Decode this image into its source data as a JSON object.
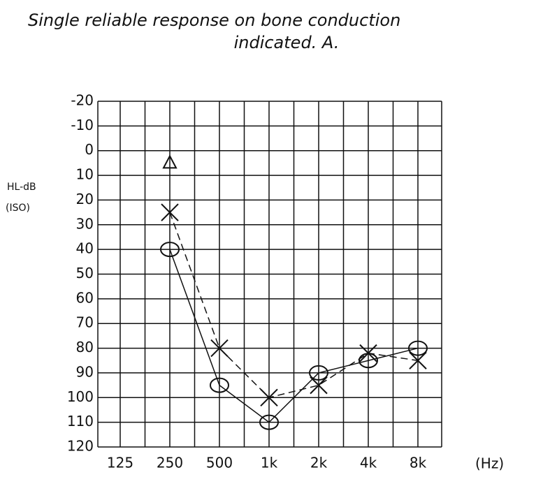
{
  "chart_data": {
    "type": "line",
    "title": [
      "Single reliable response on bone conduction",
      "indicated. A."
    ],
    "y_label": [
      "HL-dB",
      "(ISO)"
    ],
    "x_unit": "(Hz)",
    "categories": [
      "125",
      "250",
      "500",
      "1k",
      "2k",
      "4k",
      "8k"
    ],
    "series": [
      {
        "marker": "circle",
        "dash": false,
        "color": "#111",
        "values": [
          null,
          40,
          95,
          110,
          90,
          85,
          80
        ]
      },
      {
        "marker": "x",
        "dash": true,
        "color": "#111",
        "values": [
          null,
          25,
          80,
          100,
          95,
          82,
          85
        ]
      },
      {
        "marker": "triangle",
        "dash": false,
        "color": "#111",
        "values": [
          null,
          5,
          null,
          null,
          null,
          null,
          null
        ]
      }
    ],
    "ylim": [
      -20,
      120
    ],
    "y_reversed": true,
    "yticks": [
      -20,
      -10,
      0,
      10,
      20,
      30,
      40,
      50,
      60,
      70,
      80,
      90,
      100,
      110,
      120
    ],
    "grid": true
  }
}
